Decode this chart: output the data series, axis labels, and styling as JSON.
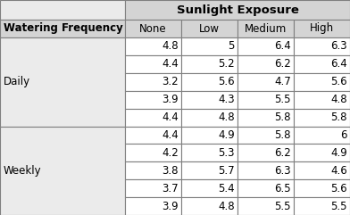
{
  "title": "Sunlight Exposure",
  "col_headers": [
    "None",
    "Low",
    "Medium",
    "High"
  ],
  "row_label_header": "Watering Frequency",
  "row_groups": [
    {
      "label": "Daily",
      "rows": [
        [
          4.8,
          5,
          6.4,
          6.3
        ],
        [
          4.4,
          5.2,
          6.2,
          6.4
        ],
        [
          3.2,
          5.6,
          4.7,
          5.6
        ],
        [
          3.9,
          4.3,
          5.5,
          4.8
        ],
        [
          4.4,
          4.8,
          5.8,
          5.8
        ]
      ]
    },
    {
      "label": "Weekly",
      "rows": [
        [
          4.4,
          4.9,
          5.8,
          6
        ],
        [
          4.2,
          5.3,
          6.2,
          4.9
        ],
        [
          3.8,
          5.7,
          6.3,
          4.6
        ],
        [
          3.7,
          5.4,
          6.5,
          5.6
        ],
        [
          3.9,
          4.8,
          5.5,
          5.5
        ]
      ]
    }
  ],
  "title_bg": "#d4d4d4",
  "header_bg": "#d4d4d4",
  "left_col_bg": "#ebebeb",
  "data_bg": "#ffffff",
  "border_color": "#7f7f7f",
  "title_fontsize": 9.5,
  "header_fontsize": 8.5,
  "label_fontsize": 8.5,
  "data_fontsize": 8.5,
  "fig_width": 3.92,
  "fig_height": 2.41,
  "dpi": 100
}
